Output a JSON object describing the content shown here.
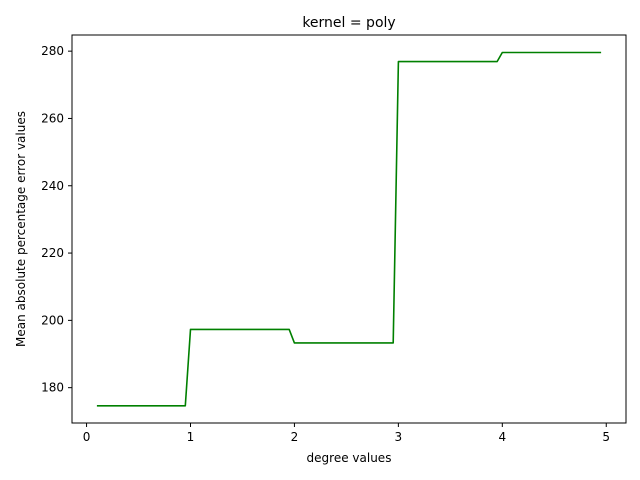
{
  "chart_data": {
    "type": "line",
    "title": "kernel = poly",
    "xlabel": "degree values",
    "ylabel": "Mean absolute percentage error values",
    "xlim": [
      -0.14,
      5.19
    ],
    "ylim": [
      169.5,
      284.8
    ],
    "xticks": [
      0,
      1,
      2,
      3,
      4,
      5
    ],
    "yticks": [
      180,
      200,
      220,
      240,
      260,
      280
    ],
    "grid": false,
    "series": [
      {
        "color": "#008000",
        "x": [
          0.1,
          0.95,
          1.0,
          1.95,
          2.0,
          2.95,
          3.0,
          3.95,
          4.0,
          4.95
        ],
        "y": [
          174.6,
          174.6,
          197.3,
          197.3,
          193.3,
          193.3,
          276.9,
          276.9,
          279.6,
          279.6
        ]
      }
    ]
  }
}
